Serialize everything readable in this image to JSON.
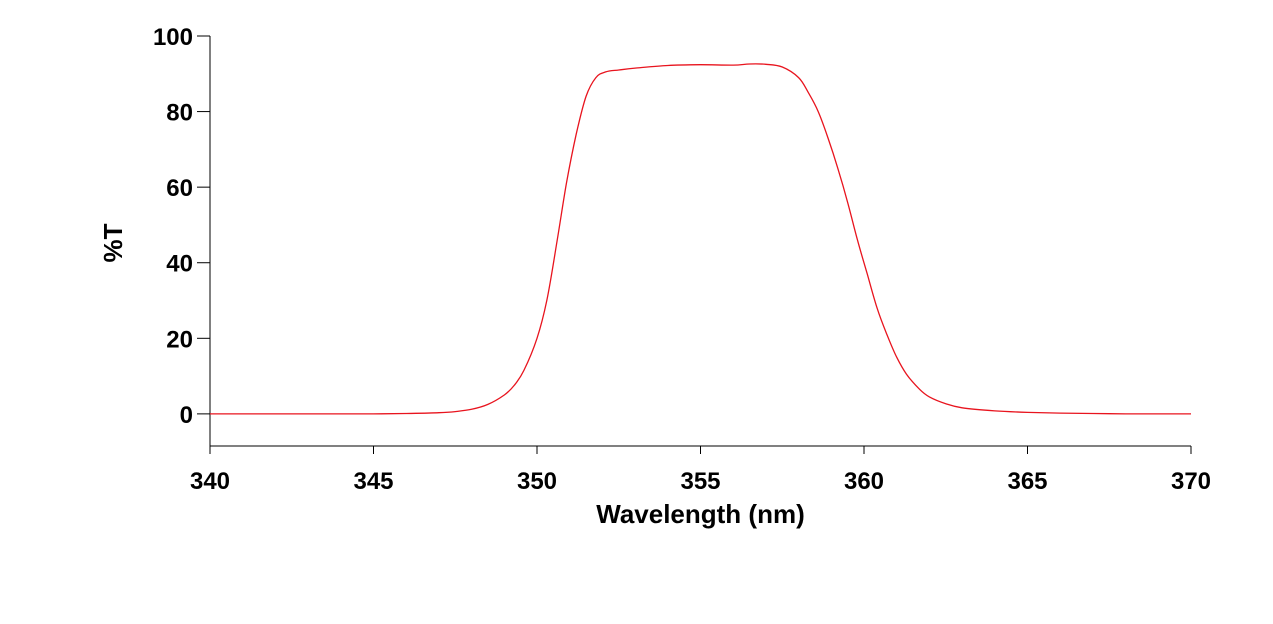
{
  "chart_data": {
    "type": "line",
    "title": "",
    "xlabel": "Wavelength (nm)",
    "ylabel": "%T",
    "xlim": [
      340,
      370
    ],
    "ylim": [
      -8.5,
      100
    ],
    "x_ticks": [
      "340",
      "345",
      "350",
      "355",
      "360",
      "365",
      "370"
    ],
    "y_ticks": [
      "0",
      "20",
      "40",
      "60",
      "80",
      "100"
    ],
    "grid": false,
    "legend": "none",
    "colors": {
      "line": "#e8141e",
      "axis": "#000000"
    },
    "series": [
      {
        "x": [
          340,
          341,
          342,
          343,
          344,
          345,
          346,
          347,
          347.5,
          348,
          348.5,
          349,
          349.3,
          349.6,
          350,
          350.3,
          350.6,
          350.9,
          351.2,
          351.5,
          351.8,
          352.1,
          352.5,
          353,
          354,
          355,
          356,
          356.5,
          357,
          357.5,
          358,
          358.3,
          358.6,
          358.9,
          359.2,
          359.5,
          359.8,
          360.1,
          360.4,
          360.7,
          361,
          361.3,
          361.7,
          362,
          362.5,
          363,
          364,
          365,
          366,
          367,
          368,
          369,
          370
        ],
        "y": [
          0,
          0,
          0,
          0,
          0,
          0,
          0.1,
          0.3,
          0.6,
          1.2,
          2.5,
          5,
          7.5,
          11.5,
          20,
          30,
          45,
          61,
          74,
          84,
          89,
          90.5,
          91,
          91.5,
          92.2,
          92.4,
          92.3,
          92.6,
          92.5,
          91.8,
          89,
          85,
          80,
          73,
          65,
          56,
          46,
          37,
          28,
          21,
          15,
          10.5,
          6.5,
          4.5,
          2.7,
          1.6,
          0.8,
          0.4,
          0.2,
          0.1,
          0,
          0,
          0
        ]
      }
    ]
  }
}
